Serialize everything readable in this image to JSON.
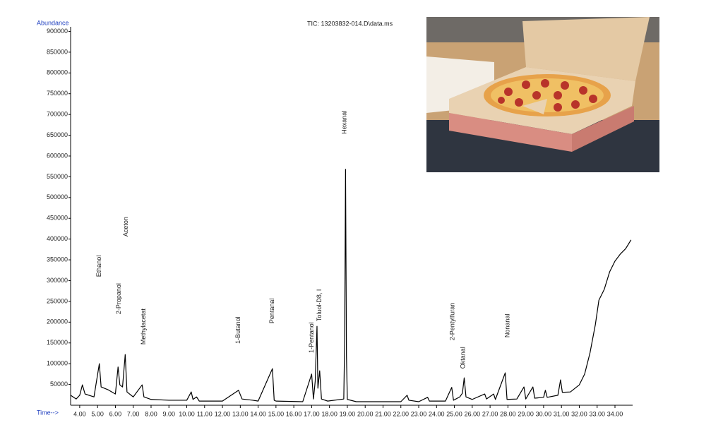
{
  "chart_data": {
    "type": "line",
    "title": "TIC: 13203832-014.D\\data.ms",
    "y_label": "Abundance",
    "x_label": "Time-->",
    "xlim": [
      3.49,
      34.95
    ],
    "ylim": [
      0,
      911000
    ],
    "xticks": [
      {
        "value": 4,
        "label": "4.00"
      },
      {
        "value": 5,
        "label": "5.00"
      },
      {
        "value": 6,
        "label": "6.00"
      },
      {
        "value": 7,
        "label": "7.00"
      },
      {
        "value": 8,
        "label": "8.00"
      },
      {
        "value": 9,
        "label": "9.00"
      },
      {
        "value": 10,
        "label": "10.00"
      },
      {
        "value": 11,
        "label": "11.00"
      },
      {
        "value": 12,
        "label": "12.00"
      },
      {
        "value": 13,
        "label": "13.00"
      },
      {
        "value": 14,
        "label": "14.00"
      },
      {
        "value": 15,
        "label": "15.00"
      },
      {
        "value": 16,
        "label": "16.00"
      },
      {
        "value": 17,
        "label": "17.00"
      },
      {
        "value": 18,
        "label": "18.00"
      },
      {
        "value": 19,
        "label": "19.00"
      },
      {
        "value": 20,
        "label": "20.00"
      },
      {
        "value": 21,
        "label": "21.00"
      },
      {
        "value": 22,
        "label": "22.00"
      },
      {
        "value": 23,
        "label": "23.00"
      },
      {
        "value": 24,
        "label": "24.00"
      },
      {
        "value": 25,
        "label": "25.00"
      },
      {
        "value": 26,
        "label": "26.00"
      },
      {
        "value": 27,
        "label": "27.00"
      },
      {
        "value": 28,
        "label": "28.00"
      },
      {
        "value": 29,
        "label": "29.00"
      },
      {
        "value": 30,
        "label": "30.00"
      },
      {
        "value": 31,
        "label": "31.00"
      },
      {
        "value": 32,
        "label": "32.00"
      },
      {
        "value": 33,
        "label": "33.00"
      },
      {
        "value": 34,
        "label": "34.00"
      }
    ],
    "yticks": [
      50000,
      100000,
      150000,
      200000,
      250000,
      300000,
      350000,
      400000,
      450000,
      500000,
      550000,
      600000,
      650000,
      700000,
      750000,
      800000,
      850000,
      900000
    ],
    "series": [
      {
        "color": "#000000",
        "x": [
          3.49,
          3.8,
          4.0,
          4.15,
          4.3,
          4.8,
          5.1,
          5.2,
          5.6,
          6.0,
          6.15,
          6.25,
          6.4,
          6.55,
          6.65,
          7.0,
          7.5,
          7.6,
          8.0,
          9.0,
          10.0,
          10.25,
          10.35,
          10.55,
          10.7,
          12.0,
          12.9,
          13.1,
          13.7,
          14.0,
          14.8,
          14.9,
          15.0,
          16.5,
          17.0,
          17.1,
          17.2,
          17.3,
          17.35,
          17.45,
          17.55,
          17.9,
          18.8,
          18.85,
          18.9,
          18.95,
          19.0,
          19.5,
          20.0,
          21.0,
          22.0,
          22.35,
          22.45,
          23.0,
          23.5,
          23.6,
          24.5,
          24.85,
          24.95,
          25.3,
          25.45,
          25.55,
          25.65,
          26.0,
          26.7,
          26.8,
          27.2,
          27.3,
          27.85,
          27.95,
          28.5,
          28.9,
          29.0,
          29.4,
          29.5,
          30.0,
          30.1,
          30.2,
          30.8,
          30.95,
          31.05,
          31.5,
          32.0,
          32.3,
          32.6,
          32.9,
          33.1,
          33.4,
          33.7,
          34.0,
          34.3,
          34.6,
          34.9
        ],
        "values": [
          24000,
          15000,
          24000,
          49000,
          27000,
          20000,
          100000,
          44000,
          37000,
          27000,
          92000,
          49000,
          44000,
          122000,
          32000,
          20000,
          49000,
          20000,
          14000,
          12000,
          12000,
          32000,
          14000,
          20000,
          10000,
          10000,
          36000,
          15000,
          12000,
          10000,
          88000,
          12000,
          10000,
          8500,
          75000,
          15000,
          58000,
          190000,
          41000,
          83000,
          15000,
          10000,
          15000,
          155000,
          568000,
          120000,
          14000,
          8500,
          8500,
          8500,
          8500,
          24000,
          12000,
          8500,
          19000,
          10000,
          10000,
          43000,
          12000,
          20000,
          29000,
          66000,
          20000,
          14000,
          27000,
          15000,
          27000,
          14000,
          78000,
          14000,
          15000,
          44000,
          15000,
          44000,
          17000,
          19000,
          36000,
          19000,
          24000,
          61000,
          31000,
          32000,
          49000,
          75000,
          126000,
          194000,
          253000,
          279000,
          321000,
          347000,
          364000,
          377000,
          398000
        ]
      }
    ],
    "annotations": [
      {
        "text": "Ethanol",
        "x": 5.1,
        "y": 309000
      },
      {
        "text": "2-Propanol",
        "x": 6.2,
        "y": 219000
      },
      {
        "text": "Aceton",
        "x": 6.6,
        "y": 406000
      },
      {
        "text": "Methylacetat",
        "x": 7.6,
        "y": 146000
      },
      {
        "text": "1-Butanol",
        "x": 12.9,
        "y": 148000
      },
      {
        "text": "Pentanal",
        "x": 14.8,
        "y": 197000
      },
      {
        "text": "1-Pentanol",
        "x": 17.0,
        "y": 126000
      },
      {
        "text": "Toluol-D8, I",
        "x": 17.45,
        "y": 202000
      },
      {
        "text": "Hexanal",
        "x": 18.85,
        "y": 653000
      },
      {
        "text": "2-Pentylfuran",
        "x": 24.9,
        "y": 156000
      },
      {
        "text": "Oktanal",
        "x": 25.5,
        "y": 88000
      },
      {
        "text": "Nonanal",
        "x": 28.0,
        "y": 163000
      }
    ]
  }
}
